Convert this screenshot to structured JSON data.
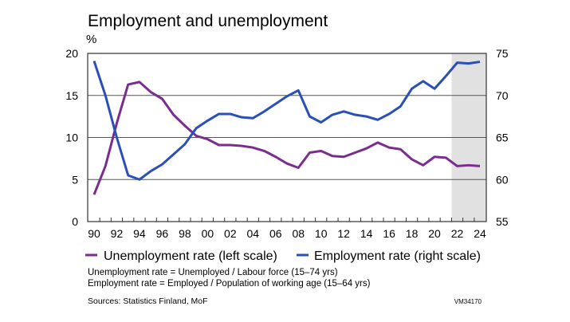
{
  "chart_data": {
    "type": "line",
    "title": "Employment and unemployment",
    "ylabel": "%",
    "x": [
      1990,
      1991,
      1992,
      1993,
      1994,
      1995,
      1996,
      1997,
      1998,
      1999,
      2000,
      2001,
      2002,
      2003,
      2004,
      2005,
      2006,
      2007,
      2008,
      2009,
      2010,
      2011,
      2012,
      2013,
      2014,
      2015,
      2016,
      2017,
      2018,
      2019,
      2020,
      2021,
      2022,
      2023,
      2024
    ],
    "xticks": [
      "90",
      "92",
      "94",
      "96",
      "98",
      "00",
      "02",
      "04",
      "06",
      "08",
      "10",
      "12",
      "14",
      "16",
      "18",
      "20",
      "22",
      "24"
    ],
    "xlim": [
      1990,
      2024
    ],
    "ylim_left": [
      0,
      20
    ],
    "yticks_left": [
      "0",
      "5",
      "10",
      "15",
      "20"
    ],
    "ylim_right": [
      55,
      75
    ],
    "yticks_right": [
      "55",
      "60",
      "65",
      "70",
      "75"
    ],
    "grid": true,
    "forecast_shading_from": 2022,
    "series": [
      {
        "name": "Unemployment rate (left scale)",
        "axis": "left",
        "color": "#7B2D8E",
        "values": [
          3.2,
          6.6,
          11.7,
          16.3,
          16.6,
          15.4,
          14.6,
          12.7,
          11.4,
          10.2,
          9.8,
          9.1,
          9.1,
          9.0,
          8.8,
          8.4,
          7.7,
          6.9,
          6.4,
          8.2,
          8.4,
          7.8,
          7.7,
          8.2,
          8.7,
          9.4,
          8.8,
          8.6,
          7.4,
          6.7,
          7.7,
          7.6,
          6.6,
          6.7,
          6.6
        ]
      },
      {
        "name": "Employment rate (right scale)",
        "axis": "right",
        "color": "#2B4FB8",
        "values": [
          74.1,
          70.0,
          65.0,
          60.5,
          60.0,
          61.0,
          61.8,
          63.0,
          64.2,
          66.1,
          67.0,
          67.8,
          67.8,
          67.4,
          67.3,
          68.1,
          69.0,
          69.9,
          70.6,
          67.5,
          66.8,
          67.7,
          68.1,
          67.7,
          67.5,
          67.1,
          67.8,
          68.7,
          70.8,
          71.7,
          70.8,
          72.3,
          73.9,
          73.8,
          74.0
        ]
      }
    ],
    "legend_placement": "bottom",
    "notes": [
      "Unemployment  rate = Unemployed  / Labour force (15–74 yrs)",
      "Employment  rate = Employed  / Population  of working age (15–64 yrs)"
    ],
    "source": "Sources: Statistics Finland, MoF",
    "code": "VM34170"
  }
}
